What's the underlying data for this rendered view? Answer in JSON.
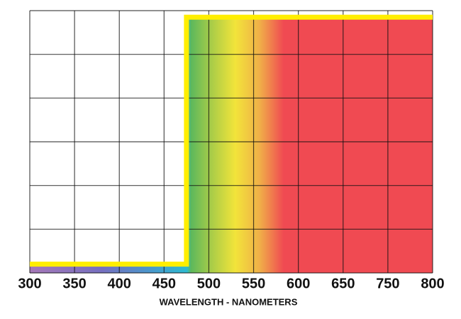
{
  "chart_data": {
    "type": "line",
    "x_label": "WAVELENGTH - NANOMETERS",
    "x": [
      300,
      475,
      475,
      800
    ],
    "series": [
      {
        "color": "#ffee00",
        "values": [
          0.2,
          0.2,
          5.85,
          5.85
        ]
      }
    ],
    "xlim": [
      300,
      800
    ],
    "xticks": [
      300,
      350,
      400,
      450,
      500,
      550,
      600,
      650,
      750,
      800
    ],
    "ylim": [
      0,
      6
    ],
    "yticks": [
      0,
      1,
      2,
      3,
      4,
      5,
      6
    ],
    "grid": true
  }
}
